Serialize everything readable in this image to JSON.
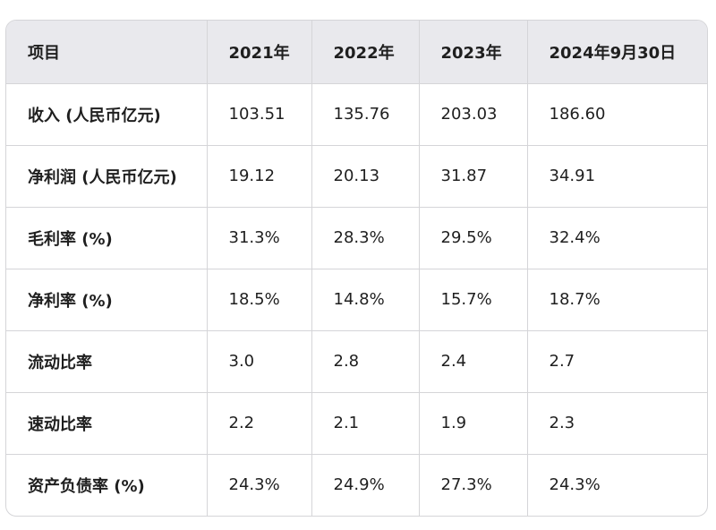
{
  "table": {
    "headers": [
      "项目",
      "2021年",
      "2022年",
      "2023年",
      "2024年9月30日"
    ],
    "rows": [
      {
        "label": "收入 (人民币亿元)",
        "values": [
          "103.51",
          "135.76",
          "203.03",
          "186.60"
        ]
      },
      {
        "label": "净利润 (人民币亿元)",
        "values": [
          "19.12",
          "20.13",
          "31.87",
          "34.91"
        ]
      },
      {
        "label": "毛利率 (%)",
        "values": [
          "31.3%",
          "28.3%",
          "29.5%",
          "32.4%"
        ]
      },
      {
        "label": "净利率 (%)",
        "values": [
          "18.5%",
          "14.8%",
          "15.7%",
          "18.7%"
        ]
      },
      {
        "label": "流动比率",
        "values": [
          "3.0",
          "2.8",
          "2.4",
          "2.7"
        ]
      },
      {
        "label": "速动比率",
        "values": [
          "2.2",
          "2.1",
          "1.9",
          "2.3"
        ]
      },
      {
        "label": "资产负债率 (%)",
        "values": [
          "24.3%",
          "24.9%",
          "27.3%",
          "24.3%"
        ]
      }
    ]
  }
}
